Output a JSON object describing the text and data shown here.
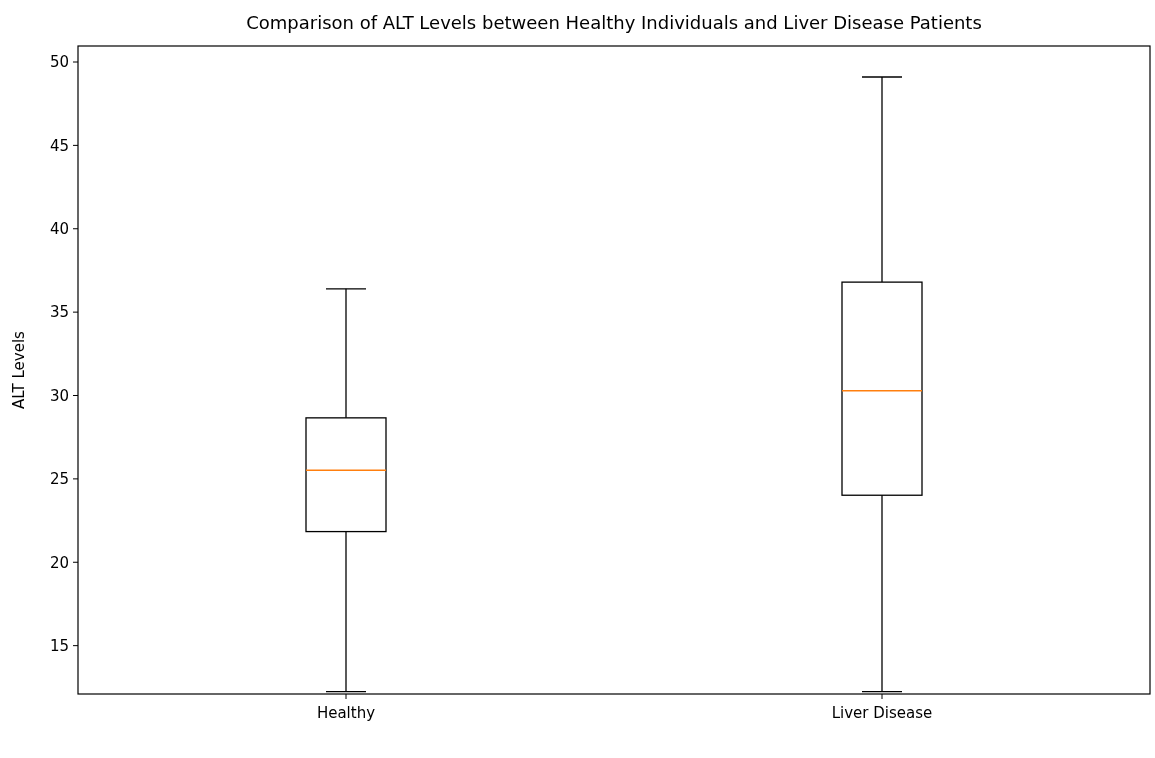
{
  "chart_data": {
    "type": "box",
    "title": "Comparison of ALT Levels between Healthy Individuals and Liver Disease Patients",
    "ylabel": "ALT Levels",
    "categories": [
      "Healthy",
      "Liver Disease"
    ],
    "boxes": [
      {
        "low": 12.24,
        "q1": 21.84,
        "median": 25.52,
        "q3": 28.66,
        "high": 36.4
      },
      {
        "low": 12.24,
        "q1": 24.02,
        "median": 30.28,
        "q3": 36.8,
        "high": 49.1
      }
    ],
    "color": "#000000",
    "ylim": [
      12.1,
      50.96
    ],
    "yticks": [
      15,
      20,
      25,
      30,
      35,
      40,
      45,
      50
    ],
    "grid": false
  }
}
